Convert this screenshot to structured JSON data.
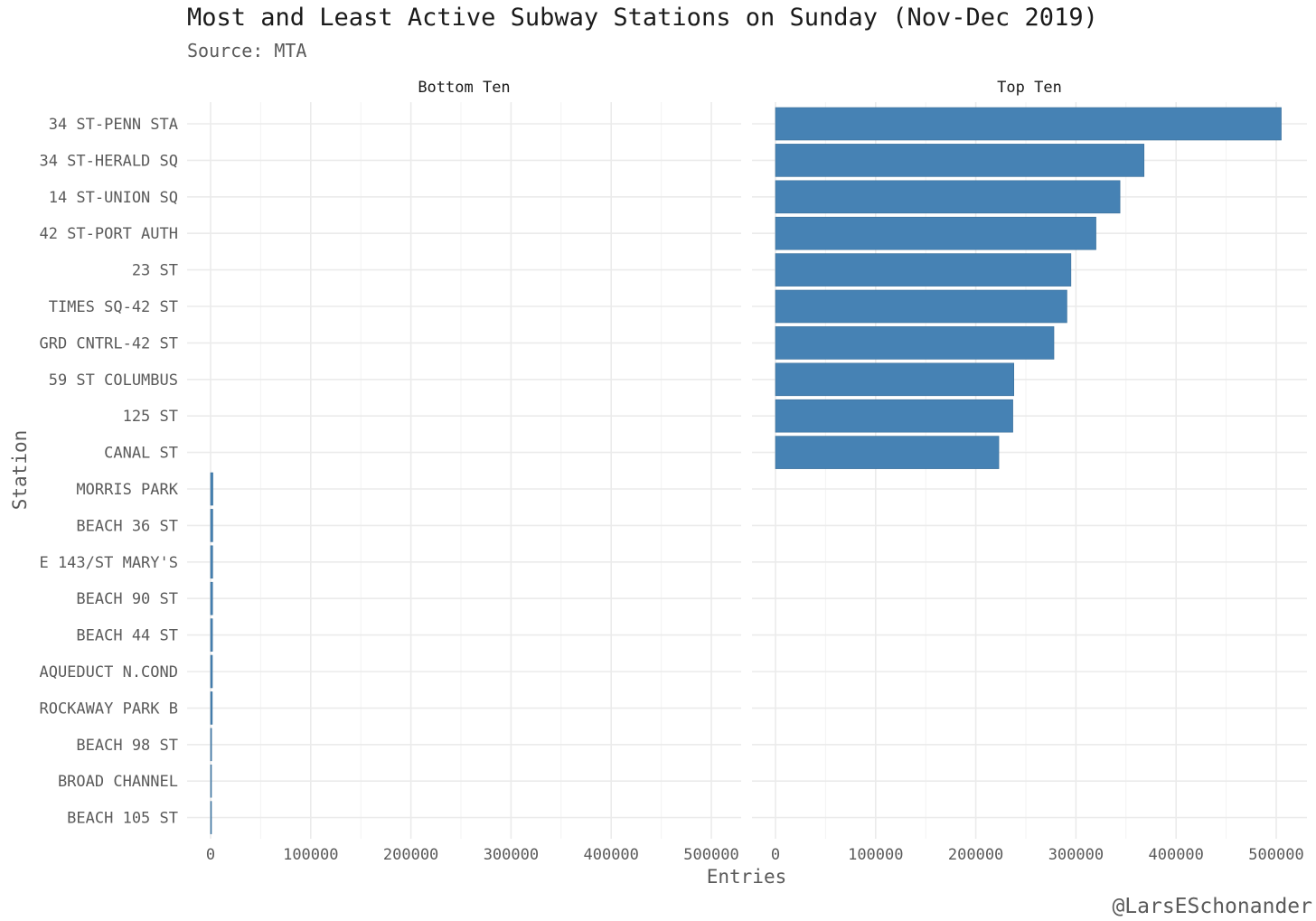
{
  "chart_data": {
    "type": "bar",
    "orientation": "horizontal",
    "title": "Most and Least Active Subway Stations on Sunday (Nov-Dec 2019)",
    "subtitle": "Source: MTA",
    "caption": "@LarsESchonander",
    "xlabel": "Entries",
    "ylabel": "Station",
    "xlim": [
      0,
      520000
    ],
    "xticks": [
      0,
      100000,
      200000,
      300000,
      400000,
      500000
    ],
    "xtick_labels": [
      "0",
      "100000",
      "200000",
      "300000",
      "400000",
      "500000"
    ],
    "grid": true,
    "bar_color": "#4682B4",
    "categories": [
      "34 ST-PENN STA",
      "34 ST-HERALD SQ",
      "14 ST-UNION SQ",
      "42 ST-PORT AUTH",
      "23 ST",
      "TIMES SQ-42 ST",
      "GRD CNTRL-42 ST",
      "59 ST COLUMBUS",
      "125 ST",
      "CANAL ST",
      "MORRIS PARK",
      "BEACH 36 ST",
      "E 143/ST MARY'S",
      "BEACH 90 ST",
      "BEACH 44 ST",
      "AQUEDUCT N.COND",
      "ROCKAWAY PARK B",
      "BEACH 98 ST",
      "BROAD CHANNEL",
      "BEACH 105 ST"
    ],
    "panels": [
      {
        "name": "Bottom Ten",
        "stations": [
          "MORRIS PARK",
          "BEACH 36 ST",
          "E 143/ST MARY'S",
          "BEACH 90 ST",
          "BEACH 44 ST",
          "AQUEDUCT N.COND",
          "ROCKAWAY PARK B",
          "BEACH 98 ST",
          "BROAD CHANNEL",
          "BEACH 105 ST"
        ],
        "values": [
          2300,
          2200,
          2100,
          2000,
          1900,
          1800,
          1700,
          1000,
          700,
          400
        ]
      },
      {
        "name": "Top Ten",
        "stations": [
          "34 ST-PENN STA",
          "34 ST-HERALD SQ",
          "14 ST-UNION SQ",
          "42 ST-PORT AUTH",
          "23 ST",
          "TIMES SQ-42 ST",
          "GRD CNTRL-42 ST",
          "59 ST COLUMBUS",
          "125 ST",
          "CANAL ST"
        ],
        "values": [
          505000,
          368000,
          344000,
          320000,
          295000,
          291000,
          278000,
          238000,
          237000,
          223000
        ]
      }
    ]
  }
}
